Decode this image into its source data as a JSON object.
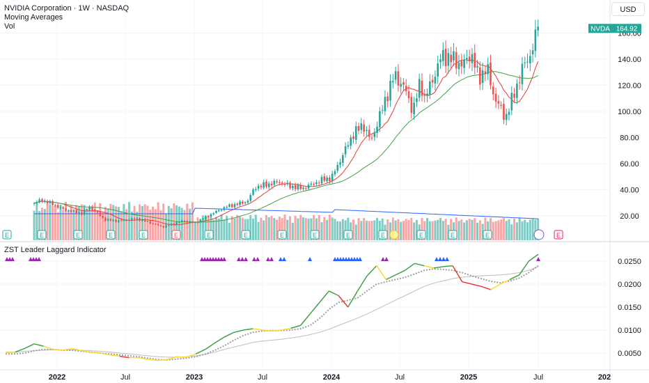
{
  "header": {
    "symbol_line": "NVIDIA Corporation · 1W · NASDAQ",
    "indicator_1": "Moving Averages",
    "indicator_2": "Vol",
    "currency": "USD"
  },
  "indicator_pane": {
    "title": "ZST Leader Laggard Indicator"
  },
  "colors": {
    "up": "#26a69a",
    "down": "#ef5350",
    "ma_fast": "#e53935",
    "ma_slow": "#43a047",
    "vol_up": "#80cbc4",
    "vol_down": "#f8a5a5",
    "vol_ma": "#2962ff",
    "leader": "#43a047",
    "neutral": "#fdd835",
    "laggard": "#e53935",
    "signal": "#9e9e9e",
    "baseline": "#bdbdbd",
    "triangle_purple": "#9c27b0",
    "triangle_blue": "#2962ff",
    "price_tag": "#26a69a"
  },
  "chart_data": [
    {
      "type": "candlestick",
      "title": "NVIDIA Corporation · 1W · NASDAQ",
      "ylim": [
        5,
        175
      ],
      "y_ticks": [
        "20.00",
        "40.00",
        "60.00",
        "80.00",
        "100.00",
        "120.00",
        "140.00",
        "160.00"
      ],
      "x_ticks": [
        "2022",
        "Jul",
        "2023",
        "Jul",
        "2024",
        "Jul",
        "2025",
        "Jul",
        "202"
      ],
      "last_price": {
        "label": "NVDA",
        "value": "164.92"
      },
      "price_anchors": [
        [
          "2021-11-01",
          30
        ],
        [
          "2021-11-22",
          32
        ],
        [
          "2021-12-20",
          29
        ],
        [
          "2022-01-17",
          25
        ],
        [
          "2022-03-07",
          22
        ],
        [
          "2022-03-28",
          27
        ],
        [
          "2022-05-09",
          17
        ],
        [
          "2022-06-13",
          16
        ],
        [
          "2022-08-01",
          18
        ],
        [
          "2022-10-10",
          11.5
        ],
        [
          "2022-10-31",
          13.5
        ],
        [
          "2022-12-05",
          16.5
        ],
        [
          "2023-01-02",
          14.5
        ],
        [
          "2023-02-13",
          21
        ],
        [
          "2023-03-27",
          27
        ],
        [
          "2023-05-22",
          31
        ],
        [
          "2023-06-12",
          42
        ],
        [
          "2023-08-14",
          46
        ],
        [
          "2023-09-11",
          43
        ],
        [
          "2023-10-16",
          41
        ],
        [
          "2023-12-11",
          48
        ],
        [
          "2024-01-01",
          49
        ],
        [
          "2024-02-26",
          82
        ],
        [
          "2024-03-25",
          90
        ],
        [
          "2024-04-15",
          77
        ],
        [
          "2024-05-27",
          112
        ],
        [
          "2024-06-17",
          128
        ],
        [
          "2024-07-15",
          117
        ],
        [
          "2024-08-05",
          100
        ],
        [
          "2024-08-26",
          125
        ],
        [
          "2024-09-02",
          108
        ],
        [
          "2024-09-23",
          122
        ],
        [
          "2024-10-21",
          143
        ],
        [
          "2024-11-18",
          140
        ],
        [
          "2024-12-16",
          135
        ],
        [
          "2025-01-06",
          145
        ],
        [
          "2025-01-27",
          125
        ],
        [
          "2025-02-17",
          134
        ],
        [
          "2025-03-10",
          110
        ],
        [
          "2025-03-31",
          100
        ],
        [
          "2025-04-07",
          94
        ],
        [
          "2025-05-05",
          117
        ],
        [
          "2025-05-26",
          135
        ],
        [
          "2025-06-16",
          145
        ],
        [
          "2025-06-30",
          159
        ],
        [
          "2025-07-07",
          164.92
        ]
      ],
      "moving_averages": [
        "fast (red)",
        "slow (green)"
      ],
      "volume": {
        "ticks": [],
        "earnings_markers": [
          "E",
          "E",
          "E",
          "E",
          "E",
          "E",
          "E",
          "E",
          "E",
          "E",
          "E",
          "E",
          "E",
          "E",
          "E"
        ]
      }
    },
    {
      "type": "line",
      "title": "ZST Leader Laggard Indicator",
      "ylim": [
        0.002,
        0.0275
      ],
      "y_ticks": [
        "0.0050",
        "0.0100",
        "0.0150",
        "0.0200",
        "0.0250"
      ],
      "series": [
        {
          "values": [
            0.005,
            0.0052,
            0.006,
            0.007,
            0.0065,
            0.0058,
            0.0056,
            0.006,
            0.0055,
            0.0052,
            0.005,
            0.0046,
            0.0043,
            0.004,
            0.004,
            0.0036,
            0.0034,
            0.0036,
            0.0042,
            0.0041,
            0.0048,
            0.0058,
            0.0072,
            0.0085,
            0.0095,
            0.01,
            0.0103,
            0.01,
            0.0098,
            0.01,
            0.0104,
            0.011,
            0.0135,
            0.016,
            0.0185,
            0.0175,
            0.015,
            0.0185,
            0.0218,
            0.024,
            0.021,
            0.022,
            0.023,
            0.0245,
            0.024,
            0.0235,
            0.0238,
            0.024,
            0.0205,
            0.02,
            0.0195,
            0.0188,
            0.02,
            0.021,
            0.022,
            0.025,
            0.0265
          ]
        },
        {
          "values": [
            0.0048,
            0.0048,
            0.005,
            0.0055,
            0.0058,
            0.0058,
            0.0056,
            0.0056,
            0.0054,
            0.0052,
            0.005,
            0.0048,
            0.0046,
            0.0044,
            0.0042,
            0.0039,
            0.0036,
            0.0035,
            0.0037,
            0.0039,
            0.0042,
            0.0048,
            0.0056,
            0.0066,
            0.0078,
            0.0088,
            0.0095,
            0.0098,
            0.0099,
            0.0099,
            0.01,
            0.0103,
            0.011,
            0.0125,
            0.0145,
            0.016,
            0.0165,
            0.017,
            0.0185,
            0.02,
            0.0205,
            0.021,
            0.0215,
            0.0222,
            0.023,
            0.0233,
            0.0232,
            0.023,
            0.0225,
            0.0218,
            0.0212,
            0.0206,
            0.0203,
            0.0207,
            0.0213,
            0.0225,
            0.024
          ]
        },
        {
          "values": [
            0.0052,
            0.0052,
            0.0054,
            0.0055,
            0.0056,
            0.0057,
            0.0057,
            0.0057,
            0.0056,
            0.0055,
            0.0054,
            0.0052,
            0.005,
            0.0048,
            0.0046,
            0.0044,
            0.0042,
            0.0041,
            0.0041,
            0.0042,
            0.0044,
            0.0047,
            0.0052,
            0.0058,
            0.0063,
            0.0068,
            0.0073,
            0.0076,
            0.0078,
            0.008,
            0.0083,
            0.0086,
            0.009,
            0.0095,
            0.0102,
            0.011,
            0.0118,
            0.0126,
            0.0135,
            0.0145,
            0.0155,
            0.0165,
            0.0175,
            0.0185,
            0.0195,
            0.0202,
            0.0207,
            0.0212,
            0.0215,
            0.0217,
            0.0218,
            0.0219,
            0.022,
            0.0222,
            0.0225,
            0.023,
            0.0238
          ]
        }
      ]
    }
  ]
}
